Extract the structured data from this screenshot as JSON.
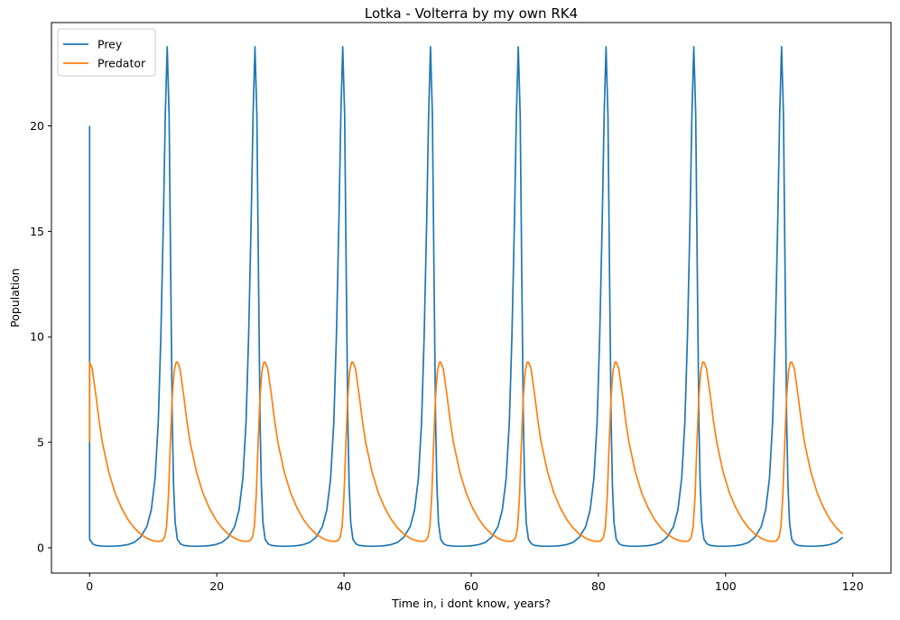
{
  "chart_data": {
    "type": "line",
    "title": "Lotka - Volterra by my own RK4",
    "xlabel": "Time in, i dont know, years?",
    "ylabel": "Population",
    "xlim": [
      -6,
      126
    ],
    "ylim": [
      -1.2,
      24.9
    ],
    "x_ticks": [
      0,
      20,
      40,
      60,
      80,
      100,
      120
    ],
    "y_ticks": [
      0,
      5,
      10,
      15,
      20
    ],
    "grid": false,
    "legend_position": "top-left",
    "x_range": [
      0,
      119
    ],
    "period": 13.8,
    "series": [
      {
        "name": "Prey",
        "color": "#1f77b4",
        "start": {
          "x": 0,
          "y": 20
        },
        "cycle": [
          {
            "x": 0.0,
            "y": 0.4
          },
          {
            "x": 0.5,
            "y": 0.18
          },
          {
            "x": 1.0,
            "y": 0.11
          },
          {
            "x": 2.0,
            "y": 0.08
          },
          {
            "x": 3.0,
            "y": 0.07
          },
          {
            "x": 4.0,
            "y": 0.08
          },
          {
            "x": 5.0,
            "y": 0.1
          },
          {
            "x": 6.0,
            "y": 0.15
          },
          {
            "x": 7.0,
            "y": 0.25
          },
          {
            "x": 8.0,
            "y": 0.5
          },
          {
            "x": 9.0,
            "y": 1.0
          },
          {
            "x": 9.7,
            "y": 1.8
          },
          {
            "x": 10.3,
            "y": 3.3
          },
          {
            "x": 10.8,
            "y": 6.0
          },
          {
            "x": 11.2,
            "y": 10.0
          },
          {
            "x": 11.6,
            "y": 15.5
          },
          {
            "x": 11.9,
            "y": 20.5
          },
          {
            "x": 12.2,
            "y": 23.75
          },
          {
            "x": 12.5,
            "y": 20.5
          },
          {
            "x": 12.75,
            "y": 13.0
          },
          {
            "x": 13.0,
            "y": 6.0
          },
          {
            "x": 13.2,
            "y": 3.0
          },
          {
            "x": 13.45,
            "y": 1.2
          },
          {
            "x": 13.8,
            "y": 0.4
          }
        ]
      },
      {
        "name": "Predator",
        "color": "#ff7f0e",
        "start": {
          "x": 0,
          "y": 5
        },
        "cycle": [
          {
            "x": 0.0,
            "y": 8.8
          },
          {
            "x": 0.4,
            "y": 8.5
          },
          {
            "x": 1.0,
            "y": 7.2
          },
          {
            "x": 1.5,
            "y": 6.0
          },
          {
            "x": 2.0,
            "y": 5.0
          },
          {
            "x": 3.0,
            "y": 3.6
          },
          {
            "x": 4.0,
            "y": 2.6
          },
          {
            "x": 5.0,
            "y": 1.9
          },
          {
            "x": 6.0,
            "y": 1.35
          },
          {
            "x": 7.0,
            "y": 0.95
          },
          {
            "x": 8.0,
            "y": 0.65
          },
          {
            "x": 9.0,
            "y": 0.45
          },
          {
            "x": 10.0,
            "y": 0.33
          },
          {
            "x": 10.8,
            "y": 0.3
          },
          {
            "x": 11.4,
            "y": 0.33
          },
          {
            "x": 11.8,
            "y": 0.5
          },
          {
            "x": 12.1,
            "y": 1.0
          },
          {
            "x": 12.4,
            "y": 2.5
          },
          {
            "x": 12.7,
            "y": 5.0
          },
          {
            "x": 13.0,
            "y": 7.2
          },
          {
            "x": 13.3,
            "y": 8.4
          },
          {
            "x": 13.6,
            "y": 8.8
          },
          {
            "x": 13.8,
            "y": 8.8
          }
        ]
      }
    ]
  }
}
